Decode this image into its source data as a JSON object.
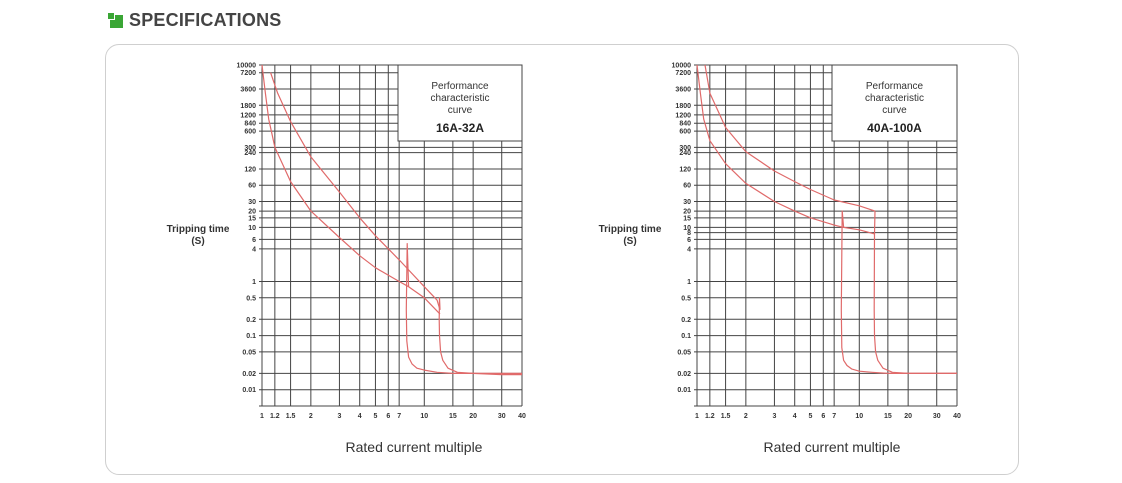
{
  "header": {
    "title": "SPECIFICATIONS",
    "icon": "green-square-icon",
    "accent": "#3aa635"
  },
  "chart_data": [
    {
      "type": "line",
      "scale": {
        "x": "log",
        "y": "log"
      },
      "grid": true,
      "xlabel": "Rated current multiple",
      "ylabel_line1": "Tripping time",
      "ylabel_line2": "(S)",
      "legend_line1": "Performance",
      "legend_line2": "characteristic",
      "legend_line3": "curve",
      "rating": "16A-32A",
      "line_color": "#e06a6a",
      "xlim": [
        1,
        40
      ],
      "ylim": [
        0.005,
        10000
      ],
      "x_ticks": [
        "1",
        "1.2",
        "1.5",
        "2",
        "3",
        "4",
        "5",
        "6",
        "7",
        "10",
        "15",
        "20",
        "30",
        "40"
      ],
      "y_ticks": [
        "10000",
        "7200",
        "3600",
        "1800",
        "1200",
        "840",
        "600",
        "300",
        "240",
        "120",
        "60",
        "30",
        "20",
        "15",
        "10",
        "6",
        "4",
        "1",
        "0.5",
        "0.2",
        "0.1",
        "0.05",
        "0.02",
        "0.01"
      ],
      "series": [
        {
          "x": [
            1.13,
            1.25,
            1.5,
            2,
            3,
            4,
            5,
            7,
            10,
            12,
            12.5
          ],
          "y": [
            7200,
            3000,
            900,
            200,
            45,
            15,
            7,
            2.5,
            0.8,
            0.45,
            0.3
          ]
        },
        {
          "x": [
            1.0,
            1.05,
            1.1,
            1.2,
            1.5,
            2,
            3,
            4,
            5,
            7,
            8,
            10,
            12.5
          ],
          "y": [
            10000,
            3000,
            1000,
            300,
            70,
            20,
            6.5,
            3,
            1.8,
            1.0,
            0.8,
            0.5,
            0.25
          ]
        },
        {
          "x": [
            12.5,
            12.4,
            12.35,
            12.4,
            12.6,
            13,
            14,
            16,
            20,
            30,
            40
          ],
          "y": [
            0.3,
            0.5,
            0.2,
            0.1,
            0.05,
            0.035,
            0.025,
            0.021,
            0.02,
            0.02,
            0.02
          ]
        },
        {
          "x": [
            8,
            7.85,
            7.75,
            7.8,
            8,
            8.4,
            9,
            10,
            12,
            15,
            20,
            30,
            40
          ],
          "y": [
            0.8,
            5,
            0.3,
            0.08,
            0.04,
            0.03,
            0.025,
            0.023,
            0.021,
            0.02,
            0.02,
            0.019,
            0.019
          ]
        }
      ]
    },
    {
      "type": "line",
      "scale": {
        "x": "log",
        "y": "log"
      },
      "grid": true,
      "xlabel": "Rated current multiple",
      "ylabel_line1": "Tripping time",
      "ylabel_line2": "(S)",
      "legend_line1": "Performance",
      "legend_line2": "characteristic",
      "legend_line3": "curve",
      "rating": "40A-100A",
      "line_color": "#e06a6a",
      "xlim": [
        1,
        40
      ],
      "ylim": [
        0.005,
        10000
      ],
      "x_ticks": [
        "1",
        "1.2",
        "1.5",
        "2",
        "3",
        "4",
        "5",
        "6",
        "7",
        "10",
        "15",
        "20",
        "30",
        "40"
      ],
      "y_ticks": [
        "10000",
        "7200",
        "3600",
        "1800",
        "1200",
        "840",
        "600",
        "300",
        "240",
        "120",
        "60",
        "30",
        "20",
        "15",
        "10",
        "8",
        "6",
        "4",
        "1",
        "0.5",
        "0.2",
        "0.1",
        "0.05",
        "0.02",
        "0.01"
      ],
      "series": [
        {
          "x": [
            1.12,
            1.2,
            1.5,
            2,
            3,
            4,
            5,
            7,
            10,
            12.5
          ],
          "y": [
            10000,
            3000,
            700,
            250,
            110,
            70,
            50,
            32,
            25,
            20
          ]
        },
        {
          "x": [
            1.0,
            1.05,
            1.1,
            1.2,
            1.5,
            2,
            3,
            4,
            5,
            7,
            8,
            10,
            12.5
          ],
          "y": [
            10000,
            3000,
            1000,
            400,
            150,
            65,
            30,
            20,
            15,
            11,
            10,
            9,
            7.5
          ]
        },
        {
          "x": [
            12.5,
            12.4,
            12.35,
            12.4,
            12.6,
            13,
            14,
            16,
            20,
            30,
            40
          ],
          "y": [
            20,
            7.5,
            0.3,
            0.1,
            0.05,
            0.035,
            0.025,
            0.021,
            0.02,
            0.02,
            0.02
          ]
        },
        {
          "x": [
            8,
            7.85,
            7.75,
            7.8,
            8,
            8.4,
            9,
            10,
            12,
            15,
            20,
            30,
            40
          ],
          "y": [
            10,
            20,
            0.3,
            0.06,
            0.035,
            0.028,
            0.024,
            0.022,
            0.021,
            0.02,
            0.02,
            0.02,
            0.02
          ]
        }
      ]
    }
  ]
}
